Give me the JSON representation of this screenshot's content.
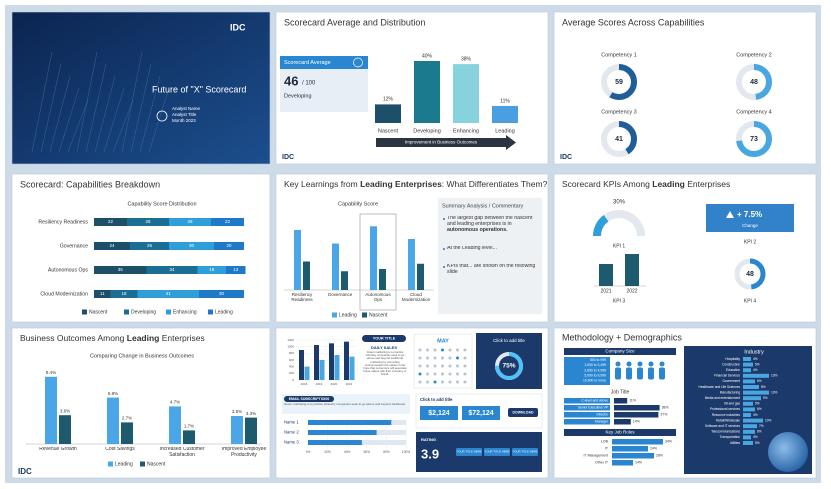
{
  "logo": "IDC",
  "slides": {
    "title_slide": {
      "title": "Future of \"X\" Scorecard",
      "lines": [
        "Analyst Name",
        "Analyst Title",
        "Month 2023"
      ]
    },
    "distribution": {
      "title": "Scorecard Average and Distribution",
      "score_label": "Scorecard Average",
      "score": 46,
      "score_max": "/ 100",
      "score_level": "Developing",
      "categories": [
        "Nascent",
        "Developing",
        "Enhancing",
        "Leading"
      ],
      "values": [
        12,
        40,
        38,
        11
      ],
      "value_labels": [
        "12%",
        "40%",
        "38%",
        "11%"
      ],
      "colors": [
        "#1d4f6b",
        "#1b7a8e",
        "#86d3de",
        "#4a9fe2"
      ],
      "arrow": "Improvement in Business Outcomes"
    },
    "capabilities": {
      "title": "Average Scores Across Capabilities",
      "names": [
        "Competency 1",
        "Competency 2",
        "Competency 3",
        "Competency 4"
      ],
      "values": [
        59,
        48,
        41,
        73
      ],
      "colors": [
        "#1f5e99",
        "#4aa6e0",
        "#1f5e99",
        "#4aa6e0"
      ]
    },
    "breakdown": {
      "title": "Scorecard: Capabilities Breakdown",
      "subtitle": "Capability Score Distribution",
      "categories": [
        "Resiliency Readiness",
        "Governance",
        "Autonomous Ops",
        "Cloud Modernization"
      ],
      "series": [
        {
          "name": "Nascent",
          "color": "#1d4f6b",
          "values": [
            22,
            24,
            35,
            11
          ]
        },
        {
          "name": "Developing",
          "color": "#1b6f95",
          "values": [
            28,
            26,
            34,
            18
          ]
        },
        {
          "name": "Enhancing",
          "color": "#2e9fd9",
          "values": [
            28,
            30,
            19,
            41
          ]
        },
        {
          "name": "Leading",
          "color": "#1f78c8",
          "values": [
            22,
            20,
            13,
            30
          ]
        }
      ]
    },
    "key_learnings": {
      "title_parts": [
        "Key Learnings from ",
        "Leading Enterprises",
        ": What Differentiates Them?"
      ],
      "chart_title": "Capability Score",
      "categories": [
        "Resiliency Readiness",
        "Governance",
        "Autonomous Ops",
        "Cloud Modernization"
      ],
      "series": [
        {
          "name": "Leading",
          "color": "#4aa6e6",
          "values": [
            80,
            62,
            85,
            68
          ]
        },
        {
          "name": "Nascent",
          "color": "#1d5a6e",
          "values": [
            38,
            25,
            28,
            35
          ]
        }
      ],
      "summary_title": "Summary Analysis / Commentary",
      "bullets": [
        {
          "text": "The largest gap between the nascent and leading enterprises is in ",
          "bold": "autonomous operations."
        },
        {
          "text": "At the Leading level..."
        },
        {
          "text": "KPIs that... are shown on the following slide"
        }
      ]
    },
    "kpis": {
      "title_parts": [
        "Scorecard KPIs Among ",
        "Leading",
        " Enterprises"
      ],
      "gauge": {
        "value": 30,
        "label": "30%",
        "name": "KPI 1"
      },
      "change": {
        "text": "+ 7.5%",
        "caption": "Change",
        "name": "KPI 2"
      },
      "bars": {
        "categories": [
          "2021",
          "2022"
        ],
        "values": [
          55,
          80
        ],
        "name": "KPI 3"
      },
      "donut": {
        "value": 48,
        "name": "KPI 4"
      }
    },
    "outcomes": {
      "title_parts": [
        "Business Outcomes Among ",
        "Leading",
        " Enterprises"
      ],
      "subtitle": "Comparing Change in Business Outcomes",
      "categories": [
        "Revenue Growth",
        "Cost Savings",
        "Increased Customer Satisfaction",
        "Improved Employee Productivity"
      ],
      "series": [
        {
          "name": "Leading",
          "color": "#4aa6e6",
          "values": [
            8.4,
            5.8,
            4.7,
            3.5
          ],
          "value_labels": [
            "8.4%",
            "5.8%",
            "4.7%",
            "3.5%"
          ]
        },
        {
          "name": "Nascent",
          "color": "#1d5a6e",
          "values": [
            3.6,
            2.7,
            1.7,
            3.3
          ],
          "value_labels": [
            "3.6%",
            "2.7%",
            "1.7%",
            "3.3%"
          ]
        }
      ]
    },
    "infographic": {
      "mini_chart": {
        "yticks": [
          0,
          200,
          400,
          600,
          800,
          1000,
          1200
        ],
        "categories": [
          "2018",
          "2019",
          "2020",
          "2021"
        ],
        "series": [
          {
            "color": "#1b3a6b",
            "values": [
              900,
              1050,
              1100,
              1150
            ]
          },
          {
            "color": "#4aa6e0",
            "values": [
              400,
              600,
              750,
              700
            ]
          }
        ]
      },
      "pill": "YOUR TITLE",
      "daily_title": "DAILY SALES",
      "daily_text": "Green marketing is a practice whereby companies seek to go above and beyond traditional marketing by promoting environmental core values in the hope that consumers will associate these values with their company or brand.",
      "month": "MAY",
      "donut_title": "Click to add title",
      "donut_value": 75,
      "donut_label": "75%",
      "email_title": "EMAIL SUBSCRIPTIONS",
      "email_text": "Green marketing is a practice whereby companies seek to go above and beyond traditional.",
      "names": [
        "Name 1",
        "Name 2",
        "Name 3"
      ],
      "name_values": [
        85,
        70,
        55
      ],
      "xticks": [
        {
          "value": 0,
          "label": "0%"
        },
        {
          "value": 20,
          "label": "20%"
        },
        {
          "value": 40,
          "label": "40%"
        },
        {
          "value": 60,
          "label": "60%"
        },
        {
          "value": 80,
          "label": "80%"
        },
        {
          "value": 100,
          "label": "100%"
        }
      ],
      "money_title": "Click to add title",
      "money": [
        "$2,124",
        "$72,124"
      ],
      "button": "DOWNLOAD",
      "rating_title": "RATING",
      "rating": 3.9,
      "rating_items": [
        "YOUR TITLE HERE",
        "YOUR TITLE HERE",
        "YOUR TITLE HERE"
      ]
    },
    "demographics": {
      "title": "Methodology + Demographics",
      "company_title": "Company Size",
      "company_sizes": [
        "500 to 999",
        "1,000 to 2,499",
        "2,500 to 4,999",
        "5,000 to 9,999",
        "10,000 or more"
      ],
      "job_title": "Job Title",
      "jobs": [
        "C-level and above",
        "Senior Executive VP",
        "Director",
        "Manager"
      ],
      "job_values": [
        11,
        38,
        37,
        14
      ],
      "job_labels": [
        "11%",
        "38%",
        "37%",
        "14%"
      ],
      "roles_title": "Key Job Roles",
      "roles": [
        "LOB",
        "IT",
        "IT Management",
        "Other IT"
      ],
      "role_values": [
        34,
        24,
        28,
        14
      ],
      "role_labels": [
        "34%",
        "24%",
        "28%",
        "14%"
      ],
      "industry_title": "Industry",
      "industries": [
        "Hospitality",
        "Construction",
        "Education",
        "Financial Services",
        "Government",
        "Healthcare and Life Sciences",
        "Manufacturing",
        "Media and entertainment",
        "Oil and gas",
        "Professional services",
        "Resource industries",
        "Retail/Wholesale",
        "Software and IT services",
        "Telecommunications",
        "Transportation",
        "Utilities"
      ],
      "industry_values": [
        4,
        5,
        4,
        13,
        6,
        8,
        13,
        9,
        5,
        6,
        4,
        10,
        7,
        6,
        4,
        5
      ],
      "industry_labels": [
        "4%",
        "5%",
        "4%",
        "13%",
        "6%",
        "8%",
        "13%",
        "9%",
        "5%",
        "6%",
        "4%",
        "10%",
        "7%",
        "6%",
        "4%",
        "5%"
      ]
    }
  }
}
